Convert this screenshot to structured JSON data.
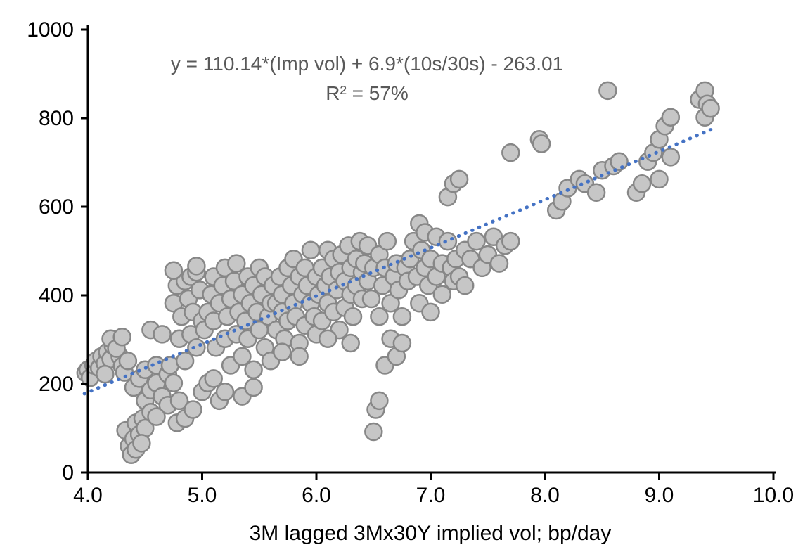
{
  "chart_data": {
    "type": "scatter",
    "title": "",
    "xlabel": "3M lagged 3Mx30Y implied vol; bp/day",
    "ylabel": "",
    "annotation_line1": "y = 110.14*(Imp vol) + 6.9*(10s/30s) - 263.01",
    "annotation_line2": "R² = 57%",
    "xlim": [
      4.0,
      10.0
    ],
    "ylim": [
      0,
      1000
    ],
    "x_ticks": [
      4.0,
      5.0,
      6.0,
      7.0,
      8.0,
      9.0,
      10.0
    ],
    "x_tick_labels": [
      "4.0",
      "5.0",
      "6.0",
      "7.0",
      "8.0",
      "9.0",
      "10.0"
    ],
    "y_ticks": [
      0,
      200,
      400,
      600,
      800,
      1000
    ],
    "y_tick_labels": [
      "0",
      "200",
      "400",
      "600",
      "800",
      "1000"
    ],
    "grid": false,
    "legend": "none",
    "marker_fill": "#c6c6c6",
    "marker_edge": "#878787",
    "axis_color": "#000000",
    "trendline": {
      "style": "dotted",
      "color": "#4472c4",
      "x": [
        3.97,
        9.5
      ],
      "y": [
        178,
        779
      ]
    },
    "points": [
      [
        3.98,
        225
      ],
      [
        4.0,
        232
      ],
      [
        4.02,
        214
      ],
      [
        4.05,
        242
      ],
      [
        4.07,
        252
      ],
      [
        4.1,
        236
      ],
      [
        4.12,
        262
      ],
      [
        4.15,
        246
      ],
      [
        4.17,
        272
      ],
      [
        4.2,
        256
      ],
      [
        4.22,
        286
      ],
      [
        4.25,
        296
      ],
      [
        4.28,
        262
      ],
      [
        4.3,
        240
      ],
      [
        4.32,
        226
      ],
      [
        4.35,
        252
      ],
      [
        4.2,
        302
      ],
      [
        4.25,
        280
      ],
      [
        4.3,
        306
      ],
      [
        4.15,
        222
      ],
      [
        4.33,
        95
      ],
      [
        4.36,
        60
      ],
      [
        4.38,
        40
      ],
      [
        4.4,
        76
      ],
      [
        4.42,
        112
      ],
      [
        4.45,
        86
      ],
      [
        4.48,
        122
      ],
      [
        4.5,
        100
      ],
      [
        4.42,
        52
      ],
      [
        4.47,
        66
      ],
      [
        4.4,
        192
      ],
      [
        4.45,
        212
      ],
      [
        4.5,
        162
      ],
      [
        4.5,
        232
      ],
      [
        4.55,
        186
      ],
      [
        4.55,
        322
      ],
      [
        4.6,
        202
      ],
      [
        4.6,
        242
      ],
      [
        4.65,
        172
      ],
      [
        4.65,
        312
      ],
      [
        4.7,
        222
      ],
      [
        4.7,
        152
      ],
      [
        4.55,
        136
      ],
      [
        4.6,
        126
      ],
      [
        4.72,
        242
      ],
      [
        4.75,
        202
      ],
      [
        4.75,
        382
      ],
      [
        4.78,
        422
      ],
      [
        4.8,
        162
      ],
      [
        4.8,
        302
      ],
      [
        4.82,
        352
      ],
      [
        4.85,
        432
      ],
      [
        4.85,
        252
      ],
      [
        4.88,
        392
      ],
      [
        4.9,
        442
      ],
      [
        4.9,
        312
      ],
      [
        4.92,
        362
      ],
      [
        4.95,
        452
      ],
      [
        4.95,
        282
      ],
      [
        4.98,
        412
      ],
      [
        5.0,
        182
      ],
      [
        5.0,
        342
      ],
      [
        4.78,
        112
      ],
      [
        4.85,
        122
      ],
      [
        4.92,
        142
      ],
      [
        4.75,
        456
      ],
      [
        4.95,
        466
      ],
      [
        5.02,
        322
      ],
      [
        5.05,
        362
      ],
      [
        5.05,
        202
      ],
      [
        5.08,
        402
      ],
      [
        5.1,
        342
      ],
      [
        5.1,
        442
      ],
      [
        5.12,
        282
      ],
      [
        5.15,
        382
      ],
      [
        5.15,
        162
      ],
      [
        5.18,
        422
      ],
      [
        5.2,
        302
      ],
      [
        5.2,
        462
      ],
      [
        5.22,
        352
      ],
      [
        5.25,
        392
      ],
      [
        5.25,
        242
      ],
      [
        5.28,
        432
      ],
      [
        5.3,
        312
      ],
      [
        5.3,
        472
      ],
      [
        5.1,
        212
      ],
      [
        5.2,
        182
      ],
      [
        5.32,
        362
      ],
      [
        5.35,
        402
      ],
      [
        5.35,
        262
      ],
      [
        5.38,
        342
      ],
      [
        5.4,
        442
      ],
      [
        5.4,
        302
      ],
      [
        5.42,
        382
      ],
      [
        5.45,
        422
      ],
      [
        5.45,
        232
      ],
      [
        5.48,
        362
      ],
      [
        5.5,
        322
      ],
      [
        5.5,
        462
      ],
      [
        5.52,
        402
      ],
      [
        5.55,
        282
      ],
      [
        5.55,
        442
      ],
      [
        5.58,
        352
      ],
      [
        5.6,
        382
      ],
      [
        5.6,
        252
      ],
      [
        5.35,
        172
      ],
      [
        5.45,
        192
      ],
      [
        5.62,
        422
      ],
      [
        5.65,
        382
      ],
      [
        5.65,
        322
      ],
      [
        5.68,
        442
      ],
      [
        5.7,
        362
      ],
      [
        5.7,
        402
      ],
      [
        5.72,
        302
      ],
      [
        5.75,
        462
      ],
      [
        5.75,
        342
      ],
      [
        5.78,
        422
      ],
      [
        5.8,
        382
      ],
      [
        5.8,
        482
      ],
      [
        5.82,
        352
      ],
      [
        5.85,
        442
      ],
      [
        5.85,
        292
      ],
      [
        5.88,
        402
      ],
      [
        5.9,
        462
      ],
      [
        5.9,
        332
      ],
      [
        5.92,
        422
      ],
      [
        5.95,
        382
      ],
      [
        5.95,
        502
      ],
      [
        5.98,
        352
      ],
      [
        6.0,
        442
      ],
      [
        6.0,
        312
      ],
      [
        5.7,
        272
      ],
      [
        5.85,
        262
      ],
      [
        6.02,
        402
      ],
      [
        6.05,
        462
      ],
      [
        6.05,
        342
      ],
      [
        6.08,
        422
      ],
      [
        6.1,
        382
      ],
      [
        6.1,
        502
      ],
      [
        6.12,
        442
      ],
      [
        6.15,
        362
      ],
      [
        6.15,
        482
      ],
      [
        6.18,
        412
      ],
      [
        6.2,
        452
      ],
      [
        6.2,
        322
      ],
      [
        6.22,
        492
      ],
      [
        6.25,
        432
      ],
      [
        6.25,
        372
      ],
      [
        6.28,
        512
      ],
      [
        6.3,
        402
      ],
      [
        6.3,
        462
      ],
      [
        6.32,
        352
      ],
      [
        6.35,
        482
      ],
      [
        6.35,
        422
      ],
      [
        6.38,
        522
      ],
      [
        6.4,
        392
      ],
      [
        6.4,
        452
      ],
      [
        6.1,
        302
      ],
      [
        6.3,
        292
      ],
      [
        6.42,
        472
      ],
      [
        6.45,
        432
      ],
      [
        6.45,
        512
      ],
      [
        6.48,
        392
      ],
      [
        6.5,
        462
      ],
      [
        6.5,
        92
      ],
      [
        6.52,
        142
      ],
      [
        6.55,
        352
      ],
      [
        6.55,
        492
      ],
      [
        6.58,
        422
      ],
      [
        6.6,
        242
      ],
      [
        6.6,
        462
      ],
      [
        6.62,
        522
      ],
      [
        6.65,
        382
      ],
      [
        6.65,
        302
      ],
      [
        6.68,
        442
      ],
      [
        6.7,
        472
      ],
      [
        6.7,
        262
      ],
      [
        6.72,
        412
      ],
      [
        6.75,
        352
      ],
      [
        6.75,
        292
      ],
      [
        6.78,
        462
      ],
      [
        6.8,
        432
      ],
      [
        6.55,
        162
      ],
      [
        6.82,
        482
      ],
      [
        6.85,
        522
      ],
      [
        6.88,
        442
      ],
      [
        6.9,
        562
      ],
      [
        6.9,
        382
      ],
      [
        6.92,
        502
      ],
      [
        6.95,
        462
      ],
      [
        6.95,
        542
      ],
      [
        6.98,
        422
      ],
      [
        7.0,
        482
      ],
      [
        7.0,
        362
      ],
      [
        7.05,
        532
      ],
      [
        7.05,
        442
      ],
      [
        7.1,
        472
      ],
      [
        7.1,
        402
      ],
      [
        7.15,
        522
      ],
      [
        7.15,
        622
      ],
      [
        7.18,
        462
      ],
      [
        7.2,
        652
      ],
      [
        7.2,
        432
      ],
      [
        7.22,
        482
      ],
      [
        7.25,
        442
      ],
      [
        7.25,
        662
      ],
      [
        7.3,
        422
      ],
      [
        7.3,
        502
      ],
      [
        7.35,
        482
      ],
      [
        7.4,
        522
      ],
      [
        7.45,
        462
      ],
      [
        7.5,
        492
      ],
      [
        7.55,
        532
      ],
      [
        7.6,
        472
      ],
      [
        7.65,
        512
      ],
      [
        7.7,
        722
      ],
      [
        7.7,
        522
      ],
      [
        7.95,
        752
      ],
      [
        7.97,
        742
      ],
      [
        8.1,
        592
      ],
      [
        8.15,
        612
      ],
      [
        8.2,
        642
      ],
      [
        8.3,
        662
      ],
      [
        8.35,
        652
      ],
      [
        8.45,
        632
      ],
      [
        8.5,
        682
      ],
      [
        8.55,
        862
      ],
      [
        8.6,
        692
      ],
      [
        8.65,
        702
      ],
      [
        8.8,
        632
      ],
      [
        8.85,
        652
      ],
      [
        8.9,
        702
      ],
      [
        8.95,
        722
      ],
      [
        9.0,
        662
      ],
      [
        9.0,
        752
      ],
      [
        9.05,
        782
      ],
      [
        9.1,
        712
      ],
      [
        9.35,
        842
      ],
      [
        9.4,
        862
      ],
      [
        9.4,
        802
      ],
      [
        9.42,
        832
      ],
      [
        9.45,
        822
      ],
      [
        9.1,
        802
      ]
    ]
  }
}
